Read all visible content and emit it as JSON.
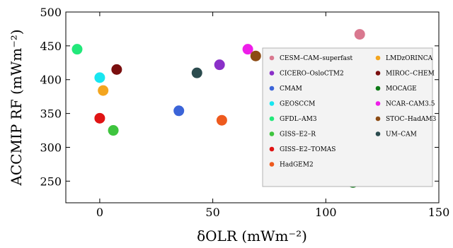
{
  "chart_data": {
    "type": "scatter",
    "xlabel": "δOLR (mWm⁻²)",
    "ylabel": "ACCMIP RF (mWm⁻²)",
    "xlim": [
      -15,
      150
    ],
    "ylim": [
      218,
      500
    ],
    "xticks": [
      0,
      50,
      100,
      150
    ],
    "yticks": [
      250,
      300,
      350,
      400,
      450,
      500
    ],
    "grid": false,
    "legend_position": "right",
    "series": [
      {
        "name": "CESM–CAM–superfast",
        "color": "#d9788f",
        "x": 115,
        "y": 467
      },
      {
        "name": "CICERO–OsloCTM2",
        "color": "#8a30c8",
        "x": 53,
        "y": 422
      },
      {
        "name": "CMAM",
        "color": "#3b64d8",
        "x": 35,
        "y": 354
      },
      {
        "name": "GEOSCCM",
        "color": "#18e6f0",
        "x": 0,
        "y": 403
      },
      {
        "name": "GFDL–AM3",
        "color": "#22e87a",
        "x": -10,
        "y": 445
      },
      {
        "name": "GISS–E2–R",
        "color": "#3ec43e",
        "x": 6,
        "y": 325
      },
      {
        "name": "GISS–E2–TOMAS",
        "color": "#e01414",
        "x": 0,
        "y": 343
      },
      {
        "name": "HadGEM2",
        "color": "#ee5a1e",
        "x": 54,
        "y": 340
      },
      {
        "name": "LMDzORINCA",
        "color": "#f3a51f",
        "x": 1.5,
        "y": 384
      },
      {
        "name": "MIROC–CHEM",
        "color": "#7a0f0f",
        "x": 7.5,
        "y": 415
      },
      {
        "name": "MOCAGE",
        "color": "#0e7a17",
        "x": 112,
        "y": 248
      },
      {
        "name": "NCAR–CAM3.5",
        "color": "#ee1ee9",
        "x": 65.5,
        "y": 445
      },
      {
        "name": "STOC–HadAM3",
        "color": "#8c4b14",
        "x": 69,
        "y": 435
      },
      {
        "name": "UM–CAM",
        "color": "#2b4b4e",
        "x": 43,
        "y": 410
      }
    ]
  }
}
